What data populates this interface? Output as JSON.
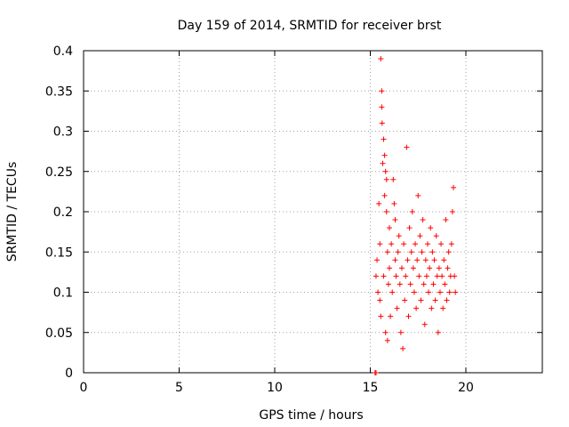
{
  "chart_data": {
    "type": "scatter",
    "title": "Day 159 of 2014, SRMTID for receiver brst",
    "xlabel": "GPS time / hours",
    "ylabel": "SRMTID / TECUs",
    "xlim": [
      0,
      24
    ],
    "ylim": [
      0,
      0.4
    ],
    "x_ticks": [
      0,
      5,
      10,
      15,
      20
    ],
    "x_tick_labels": [
      "0",
      "5",
      "10",
      "15",
      "20"
    ],
    "y_ticks": [
      0,
      0.05,
      0.1,
      0.15,
      0.2,
      0.25,
      0.3,
      0.35,
      0.4
    ],
    "y_tick_labels": [
      "0",
      "0.05",
      "0.1",
      "0.15",
      "0.2",
      "0.25",
      "0.3",
      "0.35",
      "0.4"
    ],
    "grid": true,
    "marker": "plus",
    "color": "#ff0000",
    "series": [
      {
        "x_range": [
          15.2,
          19.5
        ],
        "points": [
          [
            15.25,
            0.0
          ],
          [
            15.3,
            0.0
          ],
          [
            15.3,
            0.12
          ],
          [
            15.35,
            0.14
          ],
          [
            15.4,
            0.1
          ],
          [
            15.45,
            0.21
          ],
          [
            15.5,
            0.09
          ],
          [
            15.5,
            0.16
          ],
          [
            15.55,
            0.07
          ],
          [
            15.55,
            0.39
          ],
          [
            15.6,
            0.35
          ],
          [
            15.6,
            0.33
          ],
          [
            15.62,
            0.31
          ],
          [
            15.65,
            0.26
          ],
          [
            15.7,
            0.29
          ],
          [
            15.7,
            0.12
          ],
          [
            15.75,
            0.27
          ],
          [
            15.75,
            0.22
          ],
          [
            15.8,
            0.25
          ],
          [
            15.8,
            0.05
          ],
          [
            15.85,
            0.24
          ],
          [
            15.85,
            0.2
          ],
          [
            15.9,
            0.15
          ],
          [
            15.9,
            0.04
          ],
          [
            15.95,
            0.11
          ],
          [
            16.0,
            0.18
          ],
          [
            16.0,
            0.13
          ],
          [
            16.05,
            0.07
          ],
          [
            16.1,
            0.16
          ],
          [
            16.15,
            0.1
          ],
          [
            16.2,
            0.24
          ],
          [
            16.25,
            0.21
          ],
          [
            16.3,
            0.14
          ],
          [
            16.3,
            0.19
          ],
          [
            16.35,
            0.12
          ],
          [
            16.4,
            0.08
          ],
          [
            16.45,
            0.15
          ],
          [
            16.5,
            0.17
          ],
          [
            16.55,
            0.11
          ],
          [
            16.6,
            0.05
          ],
          [
            16.65,
            0.13
          ],
          [
            16.7,
            0.03
          ],
          [
            16.75,
            0.16
          ],
          [
            16.8,
            0.09
          ],
          [
            16.85,
            0.12
          ],
          [
            16.9,
            0.28
          ],
          [
            16.95,
            0.14
          ],
          [
            17.0,
            0.07
          ],
          [
            17.05,
            0.18
          ],
          [
            17.1,
            0.11
          ],
          [
            17.15,
            0.15
          ],
          [
            17.2,
            0.2
          ],
          [
            17.25,
            0.13
          ],
          [
            17.3,
            0.1
          ],
          [
            17.35,
            0.16
          ],
          [
            17.4,
            0.08
          ],
          [
            17.45,
            0.14
          ],
          [
            17.5,
            0.22
          ],
          [
            17.55,
            0.12
          ],
          [
            17.6,
            0.17
          ],
          [
            17.65,
            0.09
          ],
          [
            17.7,
            0.15
          ],
          [
            17.75,
            0.19
          ],
          [
            17.8,
            0.11
          ],
          [
            17.85,
            0.06
          ],
          [
            17.9,
            0.14
          ],
          [
            17.95,
            0.12
          ],
          [
            18.0,
            0.16
          ],
          [
            18.05,
            0.1
          ],
          [
            18.1,
            0.13
          ],
          [
            18.15,
            0.18
          ],
          [
            18.2,
            0.08
          ],
          [
            18.25,
            0.15
          ],
          [
            18.3,
            0.11
          ],
          [
            18.35,
            0.14
          ],
          [
            18.4,
            0.09
          ],
          [
            18.45,
            0.17
          ],
          [
            18.5,
            0.12
          ],
          [
            18.55,
            0.05
          ],
          [
            18.6,
            0.13
          ],
          [
            18.65,
            0.1
          ],
          [
            18.7,
            0.16
          ],
          [
            18.75,
            0.12
          ],
          [
            18.8,
            0.08
          ],
          [
            18.85,
            0.14
          ],
          [
            18.9,
            0.11
          ],
          [
            18.95,
            0.19
          ],
          [
            19.0,
            0.09
          ],
          [
            19.05,
            0.13
          ],
          [
            19.1,
            0.15
          ],
          [
            19.15,
            0.1
          ],
          [
            19.2,
            0.12
          ],
          [
            19.25,
            0.16
          ],
          [
            19.3,
            0.2
          ],
          [
            19.35,
            0.23
          ],
          [
            19.4,
            0.12
          ],
          [
            19.45,
            0.1
          ]
        ]
      }
    ]
  }
}
